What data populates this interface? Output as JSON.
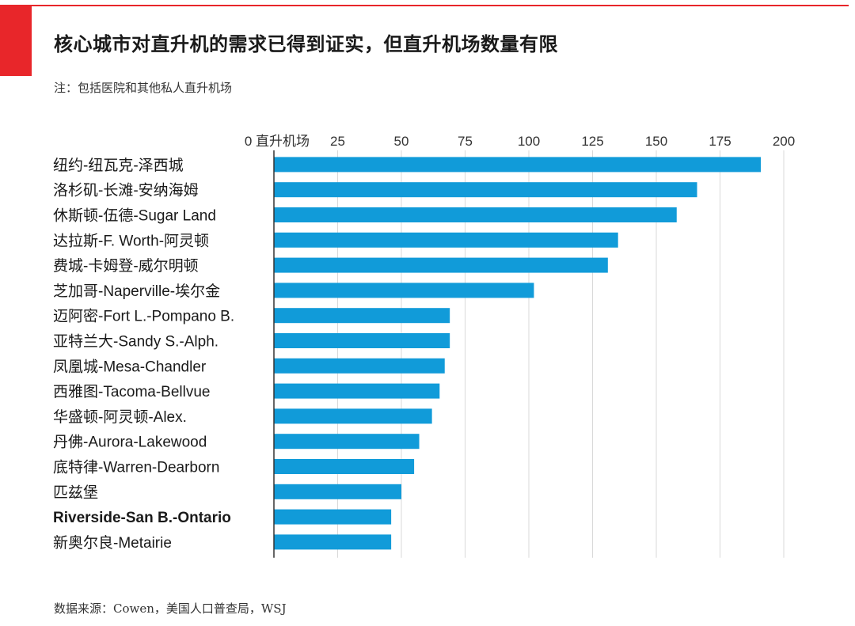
{
  "header": {
    "title": "核心城市对直升机的需求已得到证实，但直升机场数量有限",
    "note": "注：包括医院和其他私人直升机场"
  },
  "footer": {
    "source": "数据来源：Cowen，美国人口普查局，WSJ"
  },
  "colors": {
    "accent_red": "#e8262a",
    "bar_blue": "#119bd9"
  },
  "chart_data": {
    "type": "bar",
    "orientation": "horizontal",
    "title": "",
    "xlabel": "直升机场",
    "ylabel": "",
    "xlim": [
      0,
      200
    ],
    "ticks": [
      0,
      25,
      50,
      75,
      100,
      125,
      150,
      175,
      200
    ],
    "tick_labels": [
      "0 直升机场",
      "25",
      "50",
      "75",
      "100",
      "125",
      "150",
      "175",
      "200"
    ],
    "grid": true,
    "categories": [
      "纽约-纽瓦克-泽西城",
      "洛杉矶-长滩-安纳海姆",
      "休斯顿-伍德-Sugar Land",
      "达拉斯-F. Worth-阿灵顿",
      "费城-卡姆登-威尔明顿",
      "芝加哥-Naperville-埃尔金",
      "迈阿密-Fort L.-Pompano B.",
      "亚特兰大-Sandy S.-Alph.",
      "凤凰城-Mesa-Chandler",
      "西雅图-Tacoma-Bellvue",
      "华盛顿-阿灵顿-Alex.",
      "丹佛-Aurora-Lakewood",
      "底特律-Warren-Dearborn",
      "匹兹堡",
      "Riverside-San B.-Ontario",
      "新奥尔良-Metairie"
    ],
    "bold_categories": [
      "Riverside-San B.-Ontario"
    ],
    "values": [
      191,
      166,
      158,
      135,
      131,
      102,
      69,
      69,
      67,
      65,
      62,
      57,
      55,
      50,
      46,
      46
    ]
  }
}
